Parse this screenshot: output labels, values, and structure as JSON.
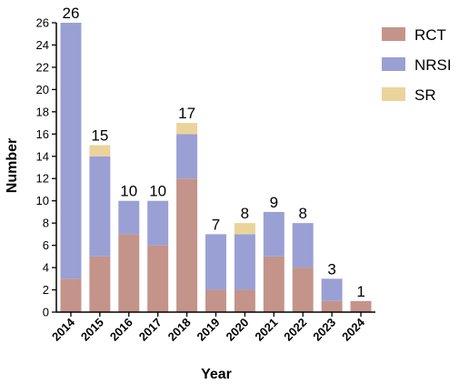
{
  "chart_data": {
    "type": "bar",
    "stacked": true,
    "xlabel": "Year",
    "ylabel": "Number",
    "ylim": [
      0,
      26
    ],
    "yticks": [
      0,
      2,
      4,
      6,
      8,
      10,
      12,
      14,
      16,
      18,
      20,
      22,
      24,
      26
    ],
    "grid": false,
    "legend_position": "top-right",
    "categories": [
      "2014",
      "2015",
      "2016",
      "2017",
      "2018",
      "2019",
      "2020",
      "2021",
      "2022",
      "2023",
      "2024"
    ],
    "series": [
      {
        "name": "RCT",
        "color": "#C4948A",
        "values": [
          3,
          5,
          7,
          6,
          12,
          2,
          2,
          5,
          4,
          1,
          1
        ]
      },
      {
        "name": "NRSI",
        "color": "#9AA0D4",
        "values": [
          23,
          9,
          3,
          4,
          4,
          5,
          5,
          4,
          4,
          2,
          0
        ]
      },
      {
        "name": "SR",
        "color": "#EBD39C",
        "values": [
          0,
          1,
          0,
          0,
          1,
          0,
          1,
          0,
          0,
          0,
          0
        ]
      }
    ],
    "totals": [
      "26",
      "15",
      "10",
      "10",
      "17",
      "7",
      "8",
      "9",
      "8",
      "3",
      "1"
    ]
  }
}
